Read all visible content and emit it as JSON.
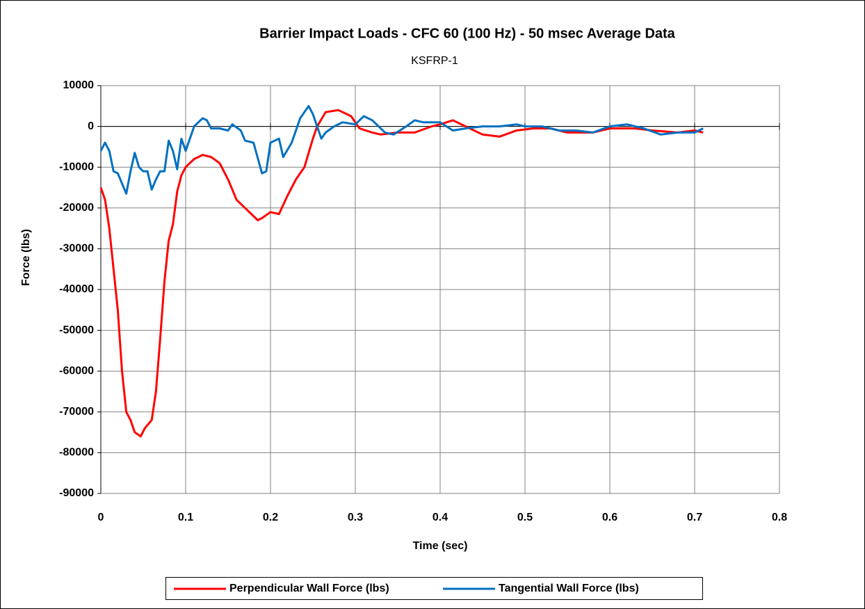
{
  "chart_data": {
    "type": "line",
    "title": "Barrier Impact Loads - CFC 60 (100 Hz) - 50 msec Average Data",
    "subtitle": "KSFRP-1",
    "x_label": "Time (sec)",
    "y_label": "Force (lbs)",
    "xlim": [
      0,
      0.8
    ],
    "xticks": [
      0,
      0.1,
      0.2,
      0.3,
      0.4,
      0.5,
      0.6,
      0.7,
      0.8
    ],
    "ylim": [
      -90000,
      10000
    ],
    "yticks": [
      10000,
      0,
      -10000,
      -20000,
      -30000,
      -40000,
      -50000,
      -60000,
      -70000,
      -80000,
      -90000
    ],
    "grid": true,
    "legend": "bottom",
    "series": [
      {
        "name": "Perpendicular Wall Force (lbs)",
        "color": "#ff0000",
        "x": [
          0,
          0.005,
          0.01,
          0.02,
          0.025,
          0.03,
          0.035,
          0.04,
          0.047,
          0.052,
          0.06,
          0.065,
          0.07,
          0.075,
          0.08,
          0.085,
          0.09,
          0.095,
          0.1,
          0.11,
          0.12,
          0.13,
          0.14,
          0.15,
          0.16,
          0.17,
          0.18,
          0.185,
          0.19,
          0.2,
          0.21,
          0.22,
          0.23,
          0.24,
          0.25,
          0.255,
          0.265,
          0.28,
          0.295,
          0.305,
          0.32,
          0.33,
          0.35,
          0.37,
          0.39,
          0.4,
          0.415,
          0.43,
          0.45,
          0.47,
          0.49,
          0.51,
          0.53,
          0.55,
          0.58,
          0.6,
          0.63,
          0.65,
          0.68,
          0.7,
          0.71
        ],
        "values": [
          -15000,
          -18000,
          -25000,
          -45000,
          -60000,
          -70000,
          -72000,
          -75000,
          -76000,
          -74000,
          -72000,
          -65000,
          -52000,
          -38000,
          -28000,
          -24000,
          -16000,
          -12000,
          -10000,
          -8000,
          -7000,
          -7500,
          -9000,
          -13000,
          -18000,
          -20000,
          -22000,
          -23000,
          -22500,
          -21000,
          -21500,
          -17000,
          -13000,
          -10000,
          -3000,
          0,
          3500,
          4000,
          2500,
          -500,
          -1500,
          -2000,
          -1500,
          -1500,
          0,
          500,
          1500,
          0,
          -2000,
          -2500,
          -1000,
          -500,
          -500,
          -1500,
          -1500,
          -500,
          -500,
          -1000,
          -1500,
          -1000,
          -1500
        ]
      },
      {
        "name": "Tangential Wall Force (lbs)",
        "color": "#0070c0",
        "x": [
          0,
          0.005,
          0.01,
          0.015,
          0.02,
          0.03,
          0.035,
          0.04,
          0.045,
          0.05,
          0.055,
          0.06,
          0.065,
          0.07,
          0.075,
          0.08,
          0.085,
          0.09,
          0.095,
          0.1,
          0.11,
          0.12,
          0.125,
          0.13,
          0.14,
          0.15,
          0.155,
          0.165,
          0.17,
          0.18,
          0.19,
          0.195,
          0.2,
          0.21,
          0.215,
          0.225,
          0.235,
          0.245,
          0.25,
          0.26,
          0.265,
          0.275,
          0.285,
          0.3,
          0.31,
          0.32,
          0.335,
          0.345,
          0.36,
          0.37,
          0.38,
          0.39,
          0.4,
          0.415,
          0.43,
          0.45,
          0.47,
          0.49,
          0.5,
          0.52,
          0.54,
          0.56,
          0.58,
          0.6,
          0.62,
          0.64,
          0.66,
          0.68,
          0.7,
          0.71
        ],
        "values": [
          -6000,
          -4000,
          -6000,
          -11000,
          -11500,
          -16500,
          -11000,
          -6500,
          -10000,
          -11000,
          -11000,
          -15500,
          -13000,
          -11000,
          -11000,
          -3500,
          -6000,
          -10500,
          -3000,
          -6000,
          0,
          2000,
          1500,
          -500,
          -500,
          -1000,
          500,
          -1000,
          -3500,
          -4000,
          -11500,
          -11000,
          -4000,
          -3000,
          -7500,
          -4000,
          2000,
          5000,
          3000,
          -3000,
          -1500,
          0,
          1000,
          500,
          2500,
          1500,
          -1500,
          -2000,
          0,
          1500,
          1000,
          1000,
          1000,
          -1000,
          -500,
          0,
          0,
          500,
          0,
          0,
          -1000,
          -1000,
          -1500,
          0,
          500,
          -500,
          -2000,
          -1500,
          -1500,
          -500
        ]
      }
    ]
  }
}
